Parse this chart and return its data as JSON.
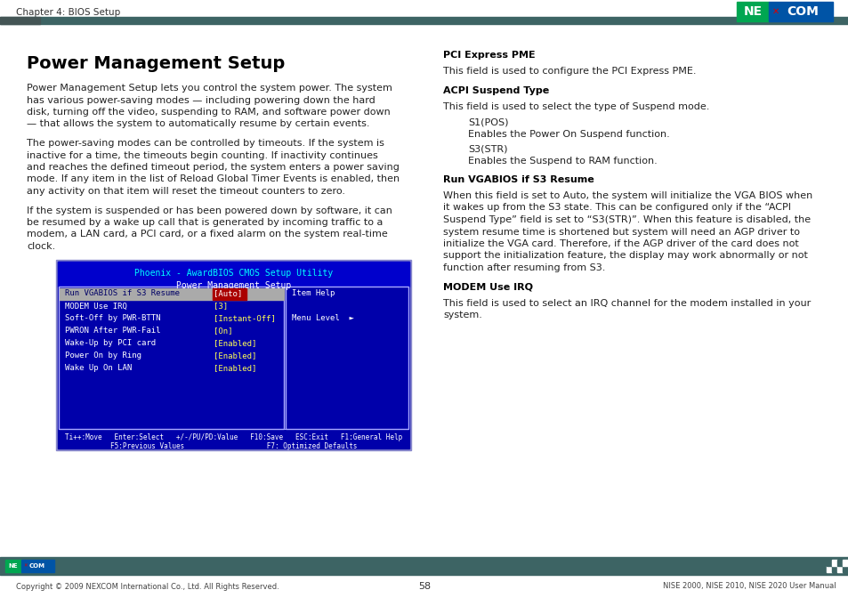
{
  "title": "Power Management Setup",
  "header_text": "Chapter 4: BIOS Setup",
  "left_para1": [
    "Power Management Setup lets you control the system power. The system",
    "has various power-saving modes — including powering down the hard",
    "disk, turning off the video, suspending to RAM, and software power down",
    "— that allows the system to automatically resume by certain events."
  ],
  "left_para2": [
    "The power-saving modes can be controlled by timeouts. If the system is",
    "inactive for a time, the timeouts begin counting. If inactivity continues",
    "and reaches the defined timeout period, the system enters a power saving",
    "mode. If any item in the list of Reload Global Timer Events is enabled, then",
    "any activity on that item will reset the timeout counters to zero."
  ],
  "left_para3": [
    "If the system is suspended or has been powered down by software, it can",
    "be resumed by a wake up call that is generated by incoming traffic to a",
    "modem, a LAN card, a PCI card, or a fixed alarm on the system real-time",
    "clock."
  ],
  "right_sections": [
    {
      "heading": "PCI Express PME",
      "text": "This field is used to configure the PCI Express PME."
    },
    {
      "heading": "ACPI Suspend Type",
      "text": "This field is used to select the type of Suspend mode."
    },
    {
      "heading": "Run VGABIOS if S3 Resume",
      "text_lines": [
        "When this field is set to Auto, the system will initialize the VGA BIOS when",
        "it wakes up from the S3 state. This can be configured only if the “ACPI",
        "Suspend Type” field is set to “S3(STR)”. When this feature is disabled, the",
        "system resume time is shortened but system will need an AGP driver to",
        "initialize the VGA card. Therefore, if the AGP driver of the card does not",
        "support the initialization feature, the display may work abnormally or not",
        "function after resuming from S3."
      ]
    },
    {
      "heading": "MODEM Use IRQ",
      "text_lines": [
        "This field is used to select an IRQ channel for the modem installed in your",
        "system."
      ]
    }
  ],
  "acpi_items": [
    {
      "label": "S1(POS)",
      "desc": "Enables the Power On Suspend function."
    },
    {
      "label": "S3(STR)",
      "desc": "Enables the Suspend to RAM function."
    }
  ],
  "bios_screen": {
    "title_line1": "Phoenix - AwardBIOS CMOS Setup Utility",
    "title_line2": "Power Management Setup",
    "rows": [
      {
        "left": "Run VGABIOS if S3 Resume",
        "val": "[Auto]",
        "right": "Item Help",
        "highlighted": true
      },
      {
        "left": "MODEM Use IRQ",
        "val": "[3]",
        "right": "",
        "highlighted": false
      },
      {
        "left": "Soft-Off by PWR-BTTN",
        "val": "[Instant-Off]",
        "right": "Menu Level  ►",
        "highlighted": false
      },
      {
        "left": "PWRON After PWR-Fail",
        "val": "[On]",
        "right": "",
        "highlighted": false
      },
      {
        "left": "Wake-Up by PCI card",
        "val": "[Enabled]",
        "right": "",
        "highlighted": false
      },
      {
        "left": "Power On by Ring",
        "val": "[Enabled]",
        "right": "",
        "highlighted": false
      },
      {
        "left": "Wake Up On LAN",
        "val": "[Enabled]",
        "right": "",
        "highlighted": false
      }
    ],
    "footer1": "Ti++:Move   Enter:Select   +/-/PU/PD:Value   F10:Save   ESC:Exit   F1:General Help",
    "footer2": "F5:Previous Values                    F7: Optimized Defaults"
  },
  "footer_text": "Copyright © 2009 NEXCOM International Co., Ltd. All Rights Reserved.",
  "page_number": "58",
  "footer_right": "NISE 2000, NISE 2010, NISE 2020 User Manual",
  "header_bar_color": "#3d6464",
  "footer_bar_color": "#3d6464",
  "nexcom_green": "#00a651",
  "nexcom_blue": "#0054a6",
  "bios_bg": "#0000aa",
  "bios_cyan": "#00ffff",
  "bios_yellow": "#ffff55",
  "bios_white": "#ffffff",
  "bios_red_hi": "#aa0000",
  "bios_highlight_bg": "#aaaaaa"
}
